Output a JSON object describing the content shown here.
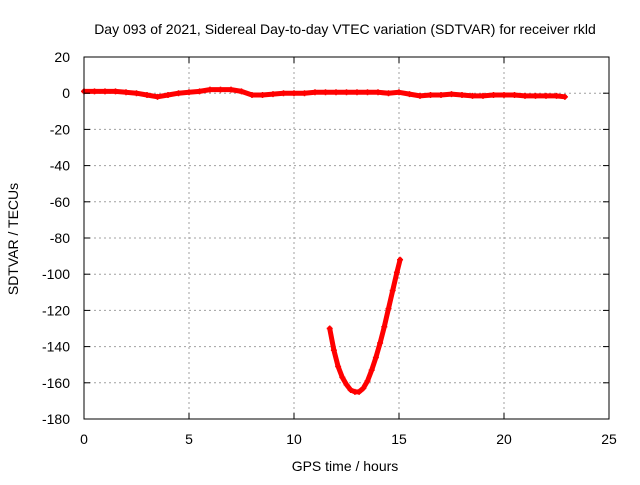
{
  "chart_data": {
    "type": "scatter",
    "title": "Day 093 of 2021, Sidereal Day-to-day VTEC variation (SDTVAR) for receiver rkld",
    "xlabel": "GPS time / hours",
    "ylabel": "SDTVAR / TECUs",
    "xlim": [
      0,
      25
    ],
    "ylim": [
      -180,
      20
    ],
    "xticks": [
      0,
      5,
      10,
      15,
      20,
      25
    ],
    "yticks": [
      20,
      0,
      -20,
      -40,
      -60,
      -80,
      -100,
      -120,
      -140,
      -160,
      -180
    ],
    "grid": true,
    "legend": "none",
    "series": [
      {
        "color": "#ff0000",
        "marker": "plus",
        "x": [
          0,
          0.5,
          1,
          1.5,
          2,
          2.5,
          3,
          3.5,
          4,
          4.5,
          5,
          5.5,
          6,
          6.5,
          7,
          7.5,
          8,
          8.5,
          9,
          9.5,
          10,
          10.5,
          11,
          11.5,
          12,
          12.5,
          13,
          13.5,
          14,
          14.5,
          15,
          15.5,
          16,
          16.5,
          17,
          17.5,
          18,
          18.5,
          19,
          19.5,
          20,
          20.5,
          21,
          21.5,
          22,
          22.5,
          22.9
        ],
        "y": [
          1,
          1,
          1,
          1,
          0.5,
          0,
          -1,
          -2,
          -1,
          0,
          0.5,
          1,
          2,
          2,
          2,
          1,
          -1,
          -1,
          -0.5,
          0,
          0,
          0,
          0.5,
          0.5,
          0.5,
          0.5,
          0.5,
          0.5,
          0.5,
          0,
          0.5,
          -0.5,
          -1.5,
          -1,
          -1,
          -0.5,
          -1,
          -1.5,
          -1.5,
          -1,
          -1,
          -1,
          -1.5,
          -1.5,
          -1.5,
          -1.5,
          -2
        ]
      },
      {
        "color": "#ff0000",
        "marker": "plus",
        "x": [
          11.7,
          11.9,
          12.1,
          12.3,
          12.5,
          12.7,
          12.9,
          13.1,
          13.3,
          13.5,
          13.7,
          13.9,
          14.1,
          14.3,
          14.5,
          14.7,
          14.9,
          15.05
        ],
        "y": [
          -130,
          -142,
          -151,
          -157,
          -161,
          -164,
          -165,
          -165,
          -163,
          -159,
          -153,
          -146,
          -138,
          -129,
          -119,
          -109,
          -99,
          -92
        ]
      }
    ]
  }
}
